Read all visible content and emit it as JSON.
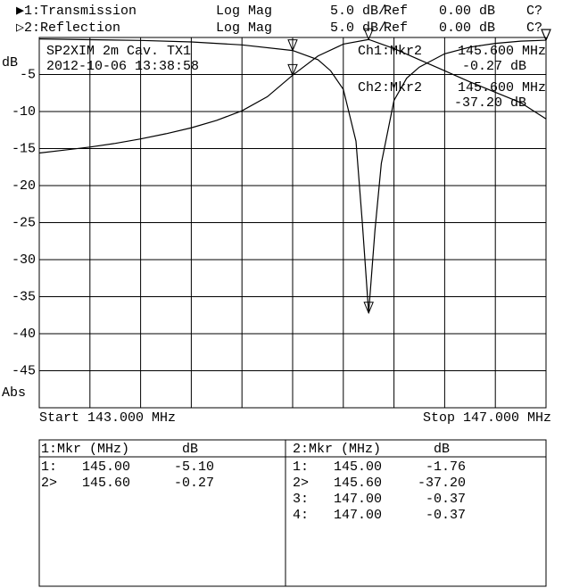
{
  "chart_data": {
    "type": "line",
    "channels": [
      {
        "label": "▶1:Transmission",
        "format": "Log Mag",
        "scale": "5.0 dB/",
        "ref_label": "Ref",
        "ref": "0.00 dB",
        "cal": "C?"
      },
      {
        "label": "▷2:Reflection",
        "format": "Log Mag",
        "scale": "5.0 dB/",
        "ref_label": "Ref",
        "ref": "0.00 dB",
        "cal": "C?"
      }
    ],
    "annotations": [
      "SP2XIM 2m Cav. TX1",
      "2012-10-06 13:38:58",
      "Ch1:Mkr2",
      "145.600 MHz",
      "-0.27 dB",
      "Ch2:Mkr2",
      "145.600 MHz",
      "-37.20 dB"
    ],
    "y_label": "dB",
    "y_format": "Abs",
    "start_label": "Start 143.000 MHz",
    "stop_label": "Stop 147.000 MHz",
    "xlim": [
      143,
      147
    ],
    "ylim": [
      -50,
      0
    ],
    "yticks": [
      -5,
      -10,
      -15,
      -20,
      -25,
      -30,
      -35,
      -40,
      -45
    ],
    "grid": true,
    "series": [
      {
        "name": "Transmission",
        "color": "#000000",
        "x": [
          143.0,
          143.2,
          143.4,
          143.6,
          143.8,
          144.0,
          144.2,
          144.4,
          144.6,
          144.8,
          145.0,
          145.2,
          145.4,
          145.6,
          145.8,
          146.0,
          146.2,
          146.4,
          146.6,
          146.8,
          147.0
        ],
        "values": [
          -15.6,
          -15.2,
          -14.8,
          -14.3,
          -13.7,
          -13.0,
          -12.2,
          -11.2,
          -9.9,
          -8.0,
          -5.1,
          -2.5,
          -0.9,
          -0.27,
          -1.5,
          -3.0,
          -4.5,
          -6.0,
          -7.4,
          -8.8,
          -11.0
        ]
      },
      {
        "name": "Reflection",
        "color": "#000000",
        "x": [
          143.0,
          143.4,
          143.8,
          144.2,
          144.6,
          145.0,
          145.2,
          145.3,
          145.4,
          145.5,
          145.55,
          145.6,
          145.65,
          145.7,
          145.8,
          145.9,
          146.0,
          146.2,
          146.4,
          146.6,
          146.8,
          147.0
        ],
        "values": [
          -0.2,
          -0.3,
          -0.4,
          -0.6,
          -1.0,
          -1.76,
          -3.0,
          -4.5,
          -7.0,
          -14.0,
          -25.0,
          -37.2,
          -26.0,
          -17.0,
          -8.5,
          -5.5,
          -4.0,
          -2.2,
          -1.3,
          -0.8,
          -0.5,
          -0.37
        ]
      }
    ],
    "marker_tables": [
      {
        "title": "1:Mkr (MHz)",
        "unit": "dB",
        "series": 0,
        "rows": [
          {
            "id": "1:",
            "x": {
              "value": 145.0,
              "label": "145.00"
            },
            "y": {
              "value": -5.1,
              "label": "-5.10"
            }
          },
          {
            "id": "2>",
            "x": {
              "value": 145.6,
              "label": "145.60"
            },
            "y": {
              "value": -0.27,
              "label": "-0.27"
            }
          }
        ]
      },
      {
        "title": "2:Mkr (MHz)",
        "unit": "dB",
        "series": 1,
        "rows": [
          {
            "id": "1:",
            "x": {
              "value": 145.0,
              "label": "145.00"
            },
            "y": {
              "value": -1.76,
              "label": "-1.76"
            }
          },
          {
            "id": "2>",
            "x": {
              "value": 145.6,
              "label": "145.60"
            },
            "y": {
              "value": -37.2,
              "label": "-37.20"
            }
          },
          {
            "id": "3:",
            "x": {
              "value": 147.0,
              "label": "147.00"
            },
            "y": {
              "value": -0.37,
              "label": "-0.37"
            }
          },
          {
            "id": "4:",
            "x": {
              "value": 147.0,
              "label": "147.00"
            },
            "y": {
              "value": -0.37,
              "label": "-0.37"
            }
          }
        ]
      }
    ]
  }
}
